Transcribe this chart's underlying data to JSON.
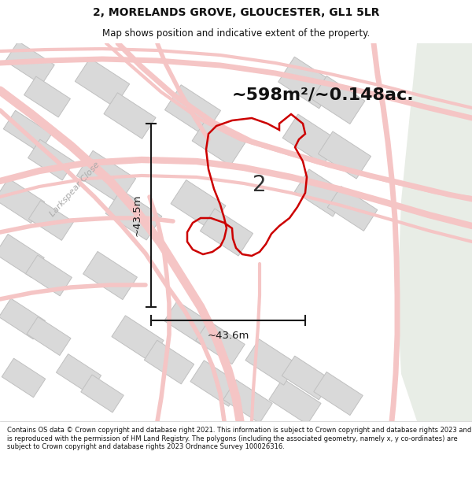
{
  "title": "2, MORELANDS GROVE, GLOUCESTER, GL1 5LR",
  "subtitle": "Map shows position and indicative extent of the property.",
  "footer": "Contains OS data © Crown copyright and database right 2021. This information is subject to Crown copyright and database rights 2023 and is reproduced with the permission of HM Land Registry. The polygons (including the associated geometry, namely x, y co-ordinates) are subject to Crown copyright and database rights 2023 Ordnance Survey 100026316.",
  "area_label": "~598m²/~0.148ac.",
  "width_label": "~43.6m",
  "height_label": "~43.5m",
  "property_number": "2",
  "bg_color": "#f2f2f2",
  "road_color": "#f5c5c5",
  "road_edge": "#e8a8a8",
  "building_color": "#d9d9d9",
  "building_edge": "#c0c0c0",
  "property_color": "#cc0000",
  "dim_line_color": "#1a1a1a",
  "street_label": "Larkspear Close",
  "right_bg": "#e8ede6"
}
